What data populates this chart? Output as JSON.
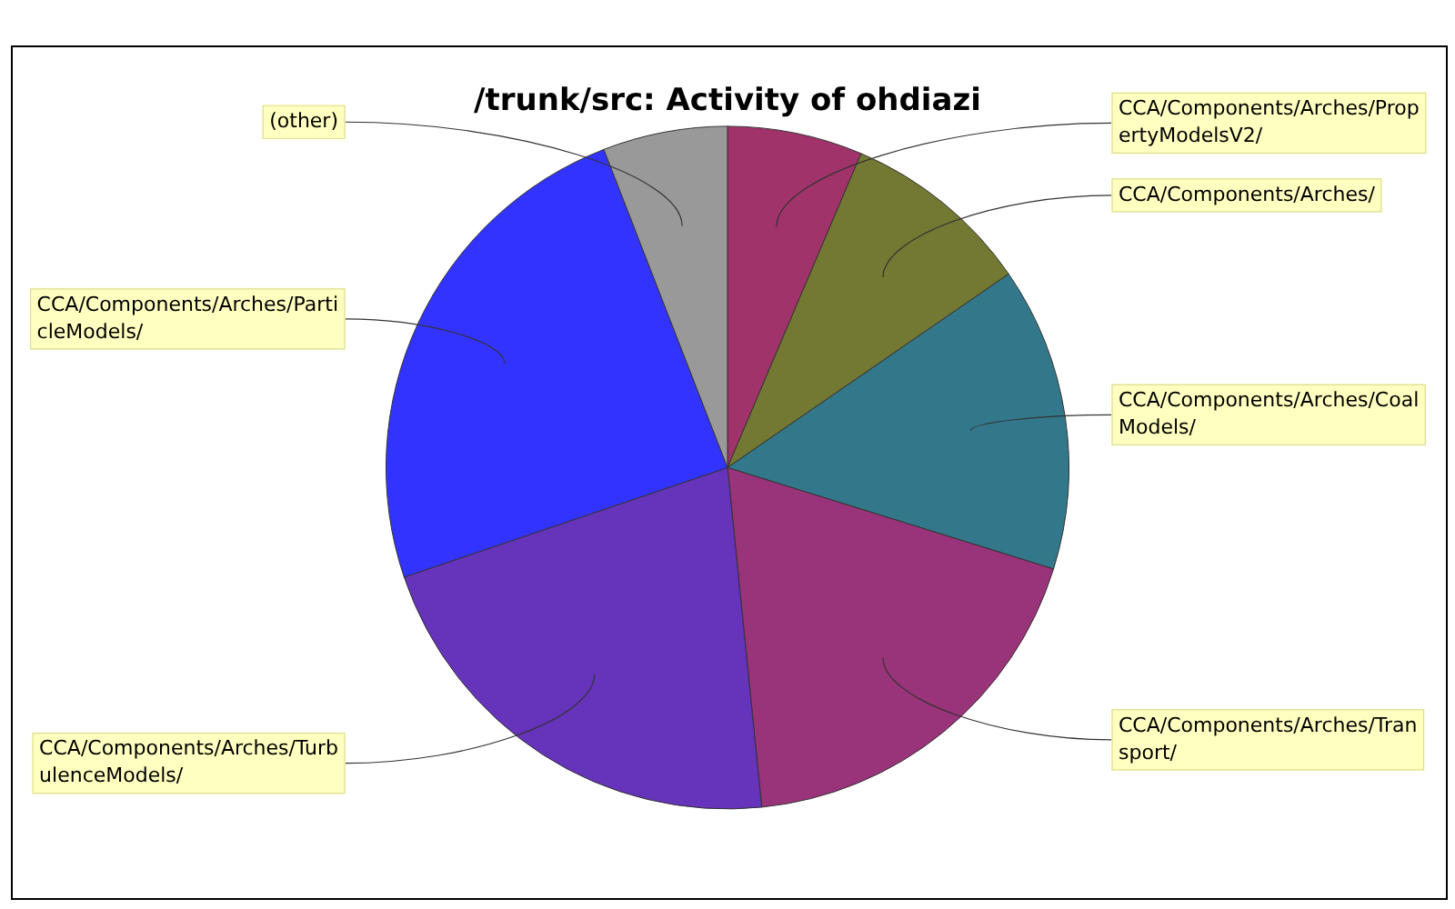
{
  "chart_data": {
    "type": "pie",
    "title": "/trunk/src: Activity of ohdiazi",
    "categories": [
      "CCA/Components/Arches/PropertyModelsV2/",
      "CCA/Components/Arches/",
      "CCA/Components/Arches/CoalModels/",
      "CCA/Components/Arches/Transport/",
      "CCA/Components/Arches/TurbulenceModels/",
      "CCA/Components/Arches/ParticleModels/",
      "(other)"
    ],
    "values": [
      6.4,
      9.0,
      14.4,
      18.6,
      21.4,
      24.3,
      5.9
    ],
    "colors": [
      "#a0336a",
      "#737832",
      "#33788a",
      "#99337a",
      "#6633bb",
      "#3333ff",
      "#999999"
    ],
    "legend": false
  }
}
